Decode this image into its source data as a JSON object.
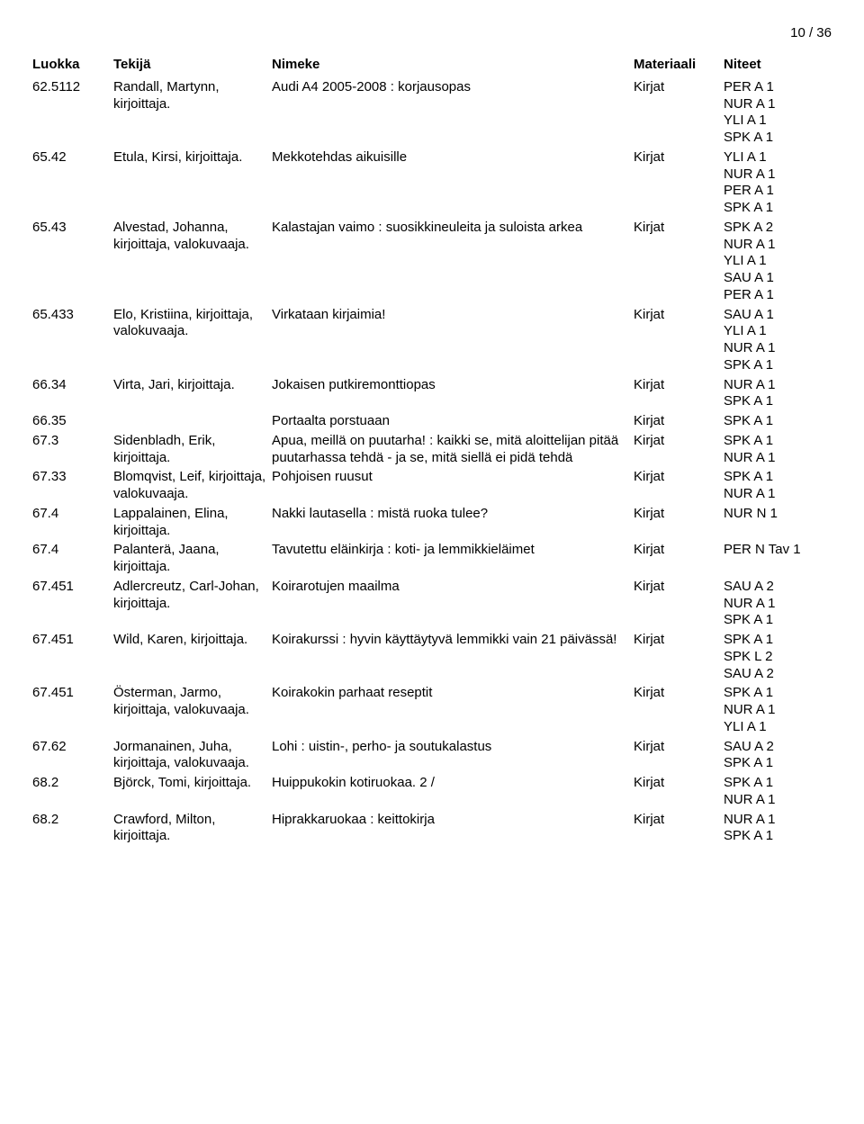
{
  "page_number": "10 / 36",
  "headers": {
    "luokka": "Luokka",
    "tekija": "Tekijä",
    "nimeke": "Nimeke",
    "materiaali": "Materiaali",
    "niteet": "Niteet"
  },
  "rows": [
    {
      "luokka": "62.5112",
      "tekija": "Randall, Martynn, kirjoittaja.",
      "nimeke": "Audi A4 2005-2008 : korjausopas",
      "materiaali": "Kirjat",
      "niteet": [
        "PER A 1",
        "NUR A 1",
        "YLI A 1",
        "SPK A 1"
      ]
    },
    {
      "luokka": "65.42",
      "tekija": "Etula, Kirsi, kirjoittaja.",
      "nimeke": "Mekkotehdas aikuisille",
      "materiaali": "Kirjat",
      "niteet": [
        "YLI A 1",
        "NUR A 1",
        "PER A 1",
        "SPK A 1"
      ]
    },
    {
      "luokka": "65.43",
      "tekija": "Alvestad, Johanna, kirjoittaja, valokuvaaja.",
      "nimeke": "Kalastajan vaimo : suosikkineuleita ja suloista arkea",
      "materiaali": "Kirjat",
      "niteet": [
        "SPK A 2",
        "NUR A 1",
        "YLI A 1",
        "SAU A 1",
        "PER A 1"
      ]
    },
    {
      "luokka": "65.433",
      "tekija": "Elo, Kristiina, kirjoittaja, valokuvaaja.",
      "nimeke": "Virkataan kirjaimia!",
      "materiaali": "Kirjat",
      "niteet": [
        "SAU A 1",
        "YLI A 1",
        "NUR A 1",
        "SPK A 1"
      ]
    },
    {
      "luokka": "66.34",
      "tekija": "Virta, Jari, kirjoittaja.",
      "nimeke": "Jokaisen putkiremonttiopas",
      "materiaali": "Kirjat",
      "niteet": [
        "NUR A 1",
        "SPK A 1"
      ]
    },
    {
      "luokka": "66.35",
      "tekija": "",
      "nimeke": "Portaalta porstuaan",
      "materiaali": "Kirjat",
      "niteet": [
        "SPK A 1"
      ]
    },
    {
      "luokka": "67.3",
      "tekija": "Sidenbladh, Erik, kirjoittaja.",
      "nimeke": "Apua, meillä on puutarha! : kaikki se, mitä aloittelijan pitää puutarhassa tehdä - ja se, mitä siellä ei pidä tehdä",
      "materiaali": "Kirjat",
      "niteet": [
        "SPK A 1",
        "NUR A 1"
      ]
    },
    {
      "luokka": "67.33",
      "tekija": "Blomqvist, Leif, kirjoittaja, valokuvaaja.",
      "nimeke": "Pohjoisen ruusut",
      "materiaali": "Kirjat",
      "niteet": [
        "SPK A 1",
        "NUR A 1"
      ]
    },
    {
      "luokka": "67.4",
      "tekija": "Lappalainen, Elina, kirjoittaja.",
      "nimeke": "Nakki lautasella : mistä ruoka tulee?",
      "materiaali": "Kirjat",
      "niteet": [
        "NUR N 1"
      ]
    },
    {
      "luokka": "67.4",
      "tekija": "Palanterä, Jaana, kirjoittaja.",
      "nimeke": "Tavutettu eläinkirja : koti- ja lemmikkieläimet",
      "materiaali": "Kirjat",
      "niteet": [
        "PER N Tav 1"
      ]
    },
    {
      "luokka": "67.451",
      "tekija": "Adlercreutz, Carl-Johan, kirjoittaja.",
      "nimeke": "Koirarotujen maailma",
      "materiaali": "Kirjat",
      "niteet": [
        "SAU A 2",
        "NUR A 1",
        "SPK A 1"
      ]
    },
    {
      "luokka": "67.451",
      "tekija": "Wild, Karen, kirjoittaja.",
      "nimeke": "Koirakurssi : hyvin käyttäytyvä lemmikki vain 21 päivässä!",
      "materiaali": "Kirjat",
      "niteet": [
        "SPK A 1",
        "SPK L 2",
        "SAU A 2"
      ]
    },
    {
      "luokka": "67.451",
      "tekija": "Österman, Jarmo, kirjoittaja, valokuvaaja.",
      "nimeke": "Koirakokin parhaat reseptit",
      "materiaali": "Kirjat",
      "niteet": [
        "SPK A 1",
        "NUR A 1",
        "YLI A 1"
      ]
    },
    {
      "luokka": "67.62",
      "tekija": "Jormanainen, Juha, kirjoittaja, valokuvaaja.",
      "nimeke": "Lohi : uistin-, perho- ja soutukalastus",
      "materiaali": "Kirjat",
      "niteet": [
        "SAU A 2",
        "SPK A 1"
      ]
    },
    {
      "luokka": "68.2",
      "tekija": "Björck, Tomi, kirjoittaja.",
      "nimeke": "Huippukokin kotiruokaa. 2 /",
      "materiaali": "Kirjat",
      "niteet": [
        "SPK A 1",
        "NUR A 1"
      ]
    },
    {
      "luokka": "68.2",
      "tekija": "Crawford, Milton, kirjoittaja.",
      "nimeke": "Hiprakkaruokaa : keittokirja",
      "materiaali": "Kirjat",
      "niteet": [
        "NUR A 1",
        "SPK A 1"
      ]
    }
  ]
}
